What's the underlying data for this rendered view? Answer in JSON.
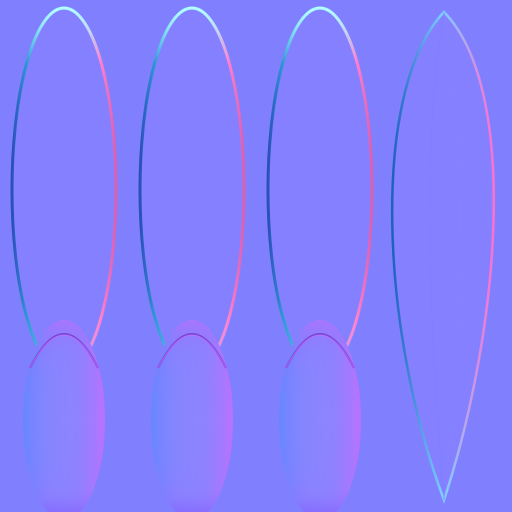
{
  "texture": {
    "kind": "normal map",
    "background_color": "#8080ff",
    "colors": {
      "rim_left": "#2f9bd6",
      "rim_left_dark": "#2a4fb8",
      "rim_right": "#ff80d0",
      "rim_right_dark": "#d95fb3",
      "rim_top": "#b0ffff",
      "bulb_left": "#6f8cff",
      "bulb_center": "#8a86ff",
      "bulb_right": "#b87cff",
      "bulb_bottom": "#a060ff",
      "bulb_top": "#e070ff"
    },
    "elements": [
      {
        "name": "petal-ring-1"
      },
      {
        "name": "petal-ring-2"
      },
      {
        "name": "petal-ring-3"
      },
      {
        "name": "leaf-blade"
      }
    ]
  }
}
